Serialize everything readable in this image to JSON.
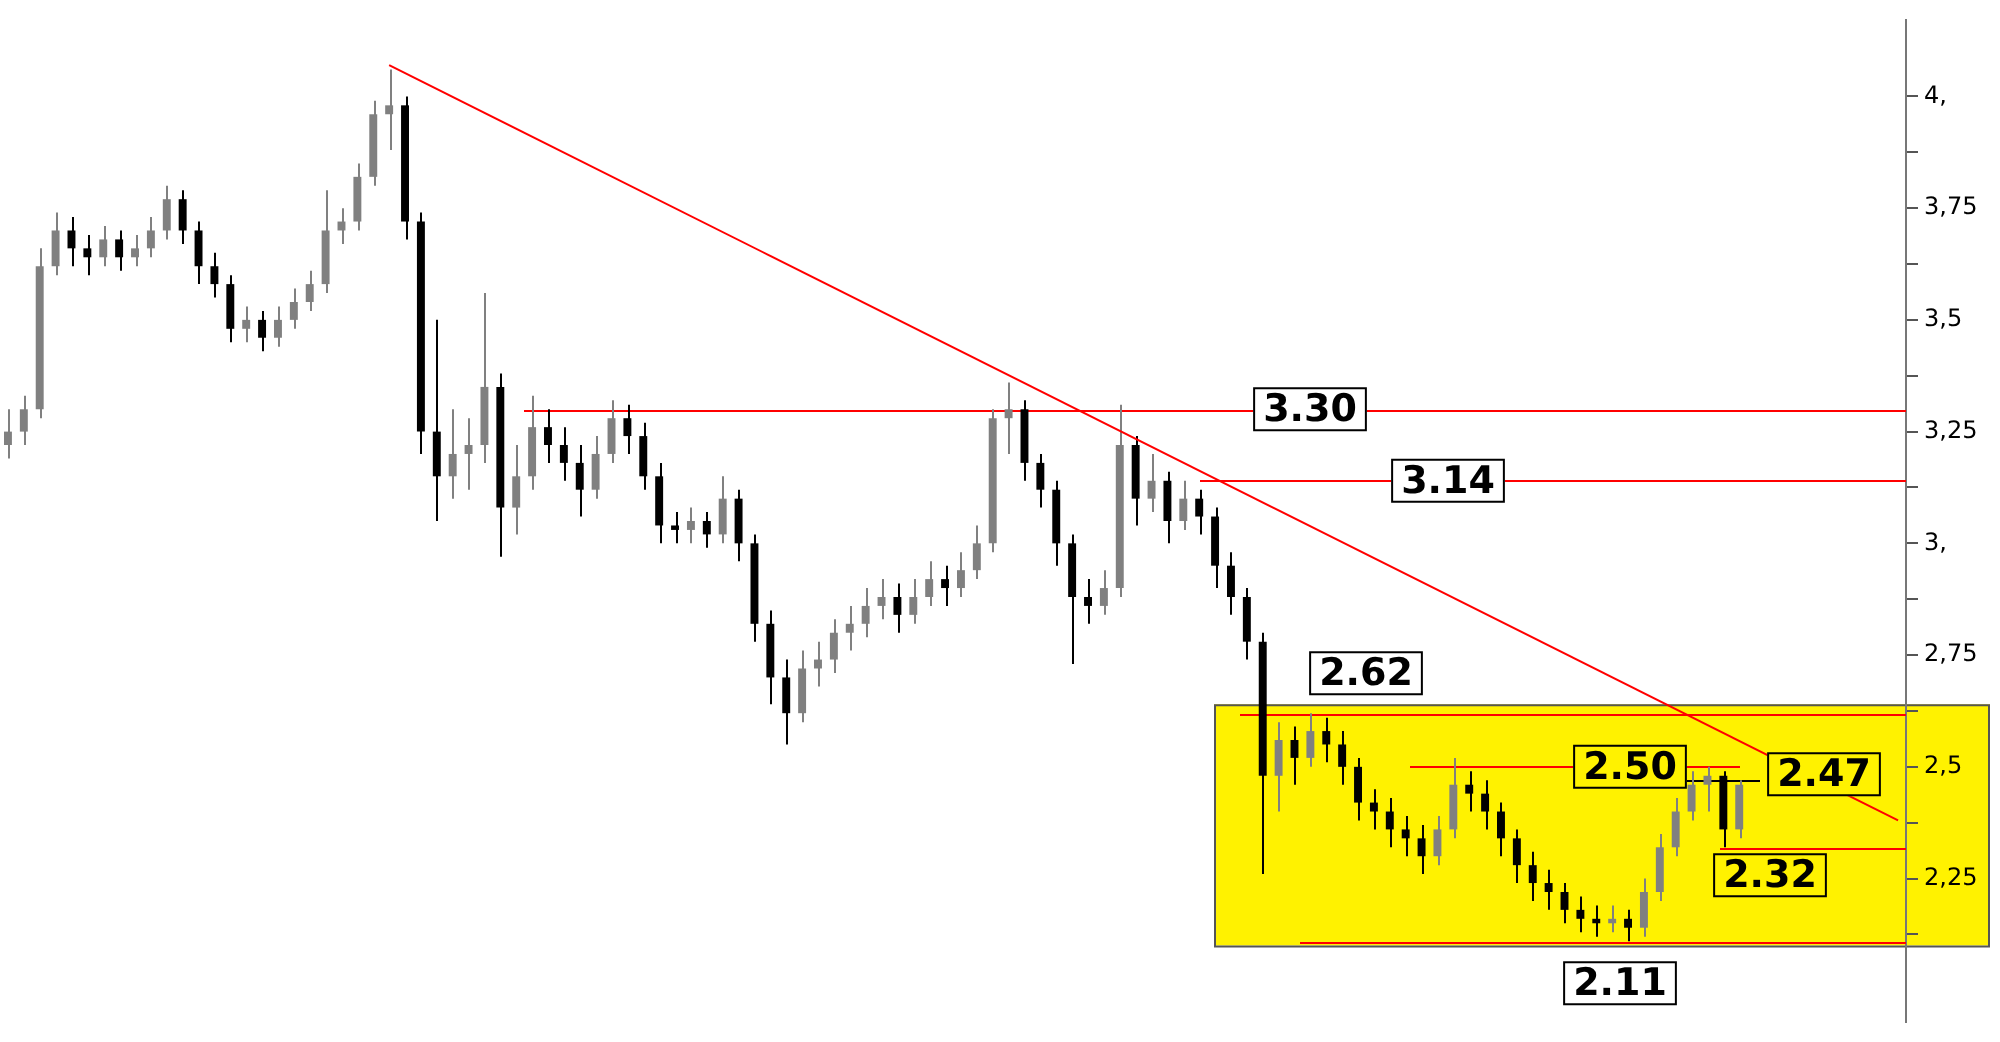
{
  "chart_data": {
    "type": "candlestick",
    "colors": [
      "#808080",
      "#808080",
      "#808080",
      "#808080",
      "#000000",
      "#000000",
      "#808080",
      "#000000",
      "#808080",
      "#808080",
      "#808080",
      "#000000",
      "#000000",
      "#000000",
      "#000000",
      "#808080",
      "#000000",
      "#808080",
      "#808080",
      "#808080",
      "#808080",
      "#808080",
      "#808080",
      "#808080",
      "#808080",
      "#000000",
      "#000000",
      "#000000",
      "#808080",
      "#808080",
      "#808080",
      "#000000",
      "#808080",
      "#808080",
      "#000000",
      "#000000",
      "#000000",
      "#808080",
      "#808080",
      "#000000",
      "#000000",
      "#000000",
      "#000000",
      "#808080",
      "#000000",
      "#808080",
      "#000000",
      "#000000",
      "#000000",
      "#000000",
      "#808080",
      "#808080",
      "#808080",
      "#808080",
      "#808080",
      "#808080",
      "#000000",
      "#808080",
      "#808080",
      "#000000",
      "#808080",
      "#808080",
      "#808080",
      "#808080",
      "#000000",
      "#000000",
      "#000000",
      "#000000",
      "#000000",
      "#808080",
      "#808080",
      "#000000",
      "#808080",
      "#000000",
      "#808080",
      "#000000",
      "#000000",
      "#000000",
      "#000000",
      "#000000",
      "#808080",
      "#000000",
      "#808080",
      "#000000",
      "#000000",
      "#000000",
      "#000000",
      "#000000",
      "#000000",
      "#000000",
      "#808080",
      "#808080",
      "#000000",
      "#000000",
      "#000000",
      "#000000",
      "#000000",
      "#000000",
      "#000000",
      "#000000",
      "#000000",
      "#808080",
      "#000000",
      "#808080",
      "#808080",
      "#808080",
      "#808080",
      "#808080",
      "#000000",
      "#808080",
      null,
      null,
      null,
      null,
      null,
      null,
      null,
      null,
      null,
      null
    ],
    "categories": [
      null,
      null,
      null,
      null,
      null,
      null,
      null,
      null,
      null,
      null,
      null,
      null,
      null,
      null,
      null,
      null,
      null,
      null,
      null,
      null,
      null,
      null,
      null,
      null,
      null,
      null,
      null,
      null,
      null,
      null,
      null,
      null,
      null,
      null,
      null,
      null,
      null,
      null,
      null,
      null,
      null,
      null,
      null,
      null,
      null,
      null,
      null,
      null,
      null,
      null,
      null,
      null,
      null,
      null,
      null,
      null,
      null,
      null,
      null,
      null,
      null,
      null,
      null,
      null,
      null,
      null,
      null,
      null,
      null,
      null,
      null,
      null,
      null,
      null,
      null,
      null,
      null,
      null,
      null,
      null,
      null,
      null,
      null,
      null,
      null,
      null,
      null,
      null,
      null,
      null,
      null,
      null,
      null,
      null,
      null,
      null,
      null,
      null,
      null,
      null,
      null,
      null,
      null,
      null,
      null,
      null,
      null,
      null,
      null,
      null,
      null,
      null,
      null,
      null,
      null,
      null,
      null,
      null,
      null,
      null
    ],
    "ohlc": [
      [
        3.22,
        3.3,
        3.19,
        3.25
      ],
      [
        3.25,
        3.33,
        3.22,
        3.3
      ],
      [
        3.3,
        3.66,
        3.28,
        3.62
      ],
      [
        3.62,
        3.74,
        3.6,
        3.7
      ],
      [
        3.7,
        3.73,
        3.62,
        3.66
      ],
      [
        3.66,
        3.69,
        3.6,
        3.64
      ],
      [
        3.64,
        3.71,
        3.62,
        3.68
      ],
      [
        3.68,
        3.7,
        3.61,
        3.64
      ],
      [
        3.64,
        3.69,
        3.62,
        3.66
      ],
      [
        3.66,
        3.73,
        3.64,
        3.7
      ],
      [
        3.7,
        3.8,
        3.68,
        3.77
      ],
      [
        3.77,
        3.79,
        3.67,
        3.7
      ],
      [
        3.7,
        3.72,
        3.58,
        3.62
      ],
      [
        3.62,
        3.65,
        3.55,
        3.58
      ],
      [
        3.58,
        3.6,
        3.45,
        3.48
      ],
      [
        3.48,
        3.53,
        3.45,
        3.5
      ],
      [
        3.5,
        3.52,
        3.43,
        3.46
      ],
      [
        3.46,
        3.53,
        3.44,
        3.5
      ],
      [
        3.5,
        3.57,
        3.48,
        3.54
      ],
      [
        3.54,
        3.61,
        3.52,
        3.58
      ],
      [
        3.58,
        3.79,
        3.56,
        3.7
      ],
      [
        3.7,
        3.75,
        3.67,
        3.72
      ],
      [
        3.72,
        3.85,
        3.7,
        3.82
      ],
      [
        3.82,
        3.99,
        3.8,
        3.96
      ],
      [
        3.96,
        4.06,
        3.88,
        3.98
      ],
      [
        3.98,
        4.0,
        3.68,
        3.72
      ],
      [
        3.72,
        3.74,
        3.2,
        3.25
      ],
      [
        3.25,
        3.5,
        3.05,
        3.15
      ],
      [
        3.15,
        3.3,
        3.1,
        3.2
      ],
      [
        3.2,
        3.28,
        3.12,
        3.22
      ],
      [
        3.22,
        3.56,
        3.18,
        3.35
      ],
      [
        3.35,
        3.38,
        2.97,
        3.08
      ],
      [
        3.08,
        3.22,
        3.02,
        3.15
      ],
      [
        3.15,
        3.33,
        3.12,
        3.26
      ],
      [
        3.26,
        3.3,
        3.18,
        3.22
      ],
      [
        3.22,
        3.26,
        3.14,
        3.18
      ],
      [
        3.18,
        3.22,
        3.06,
        3.12
      ],
      [
        3.12,
        3.24,
        3.1,
        3.2
      ],
      [
        3.2,
        3.32,
        3.18,
        3.28
      ],
      [
        3.28,
        3.31,
        3.2,
        3.24
      ],
      [
        3.24,
        3.27,
        3.12,
        3.15
      ],
      [
        3.15,
        3.18,
        3.0,
        3.04
      ],
      [
        3.04,
        3.07,
        3.0,
        3.03
      ],
      [
        3.03,
        3.08,
        3.0,
        3.05
      ],
      [
        3.05,
        3.07,
        2.99,
        3.02
      ],
      [
        3.02,
        3.15,
        3.0,
        3.1
      ],
      [
        3.1,
        3.12,
        2.96,
        3.0
      ],
      [
        3.0,
        3.02,
        2.78,
        2.82
      ],
      [
        2.82,
        2.85,
        2.64,
        2.7
      ],
      [
        2.7,
        2.74,
        2.55,
        2.62
      ],
      [
        2.62,
        2.76,
        2.6,
        2.72
      ],
      [
        2.72,
        2.78,
        2.68,
        2.74
      ],
      [
        2.74,
        2.83,
        2.71,
        2.8
      ],
      [
        2.8,
        2.86,
        2.76,
        2.82
      ],
      [
        2.82,
        2.9,
        2.79,
        2.86
      ],
      [
        2.86,
        2.92,
        2.83,
        2.88
      ],
      [
        2.88,
        2.91,
        2.8,
        2.84
      ],
      [
        2.84,
        2.92,
        2.82,
        2.88
      ],
      [
        2.88,
        2.96,
        2.86,
        2.92
      ],
      [
        2.92,
        2.95,
        2.86,
        2.9
      ],
      [
        2.9,
        2.98,
        2.88,
        2.94
      ],
      [
        2.94,
        3.04,
        2.92,
        3.0
      ],
      [
        3.0,
        3.3,
        2.98,
        3.28
      ],
      [
        3.28,
        3.36,
        3.2,
        3.3
      ],
      [
        3.3,
        3.32,
        3.14,
        3.18
      ],
      [
        3.18,
        3.2,
        3.08,
        3.12
      ],
      [
        3.12,
        3.14,
        2.95,
        3.0
      ],
      [
        3.0,
        3.02,
        2.73,
        2.88
      ],
      [
        2.88,
        2.92,
        2.82,
        2.86
      ],
      [
        2.86,
        2.94,
        2.84,
        2.9
      ],
      [
        2.9,
        3.31,
        2.88,
        3.22
      ],
      [
        3.22,
        3.24,
        3.04,
        3.1
      ],
      [
        3.1,
        3.2,
        3.07,
        3.14
      ],
      [
        3.14,
        3.16,
        3.0,
        3.05
      ],
      [
        3.05,
        3.14,
        3.03,
        3.1
      ],
      [
        3.1,
        3.12,
        3.02,
        3.06
      ],
      [
        3.06,
        3.08,
        2.9,
        2.95
      ],
      [
        2.95,
        2.98,
        2.84,
        2.88
      ],
      [
        2.88,
        2.9,
        2.74,
        2.78
      ],
      [
        2.78,
        2.8,
        2.26,
        2.48
      ],
      [
        2.48,
        2.6,
        2.4,
        2.56
      ],
      [
        2.56,
        2.59,
        2.46,
        2.52
      ],
      [
        2.52,
        2.62,
        2.5,
        2.58
      ],
      [
        2.58,
        2.61,
        2.51,
        2.55
      ],
      [
        2.55,
        2.58,
        2.46,
        2.5
      ],
      [
        2.5,
        2.52,
        2.38,
        2.42
      ],
      [
        2.42,
        2.45,
        2.36,
        2.4
      ],
      [
        2.4,
        2.43,
        2.32,
        2.36
      ],
      [
        2.36,
        2.39,
        2.3,
        2.34
      ],
      [
        2.34,
        2.37,
        2.26,
        2.3
      ],
      [
        2.3,
        2.39,
        2.28,
        2.36
      ],
      [
        2.36,
        2.52,
        2.34,
        2.46
      ],
      [
        2.46,
        2.49,
        2.4,
        2.44
      ],
      [
        2.44,
        2.47,
        2.36,
        2.4
      ],
      [
        2.4,
        2.42,
        2.3,
        2.34
      ],
      [
        2.34,
        2.36,
        2.24,
        2.28
      ],
      [
        2.28,
        2.31,
        2.2,
        2.24
      ],
      [
        2.24,
        2.27,
        2.18,
        2.22
      ],
      [
        2.22,
        2.24,
        2.15,
        2.18
      ],
      [
        2.18,
        2.21,
        2.13,
        2.16
      ],
      [
        2.16,
        2.19,
        2.12,
        2.15
      ],
      [
        2.15,
        2.19,
        2.13,
        2.16
      ],
      [
        2.16,
        2.18,
        2.11,
        2.14
      ],
      [
        2.14,
        2.25,
        2.12,
        2.22
      ],
      [
        2.22,
        2.35,
        2.2,
        2.32
      ],
      [
        2.32,
        2.43,
        2.3,
        2.4
      ],
      [
        2.4,
        2.49,
        2.38,
        2.46
      ],
      [
        2.46,
        2.5,
        2.4,
        2.48
      ],
      [
        2.48,
        2.49,
        2.32,
        2.36
      ],
      [
        2.36,
        2.47,
        2.34,
        2.46
      ],
      null,
      null,
      null,
      null,
      null,
      null,
      null,
      null,
      null,
      null
    ],
    "series": [
      {
        "type": "line",
        "color": "#ff0000",
        "values": [
          null,
          null,
          null,
          null,
          null,
          null,
          null,
          null,
          null,
          null,
          null,
          null,
          null,
          null,
          null,
          null,
          null,
          null,
          null,
          null,
          null,
          null,
          null,
          null,
          4.07,
          null,
          null,
          null,
          null,
          null,
          null,
          null,
          null,
          null,
          null,
          null,
          null,
          null,
          null,
          null,
          null,
          null,
          null,
          null,
          null,
          null,
          null,
          null,
          null,
          null,
          null,
          null,
          null,
          null,
          null,
          null,
          null,
          null,
          null,
          null,
          null,
          null,
          null,
          null,
          null,
          null,
          null,
          null,
          null,
          null,
          null,
          null,
          null,
          null,
          null,
          null,
          null,
          null,
          null,
          null,
          null,
          null,
          null,
          null,
          null,
          null,
          null,
          null,
          null,
          null,
          null,
          null,
          null,
          null,
          null,
          null,
          null,
          null,
          null,
          null,
          null,
          null,
          null,
          null,
          null,
          null,
          null,
          null,
          null,
          null,
          null,
          null,
          null,
          null,
          null,
          null,
          null,
          null,
          null,
          2.38
        ]
      }
    ],
    "ylim": [
      1.93,
      4.17
    ],
    "yticks": [
      {
        "value": 2.125,
        "label": null
      },
      {
        "value": 2.25,
        "label": "2,25"
      },
      {
        "value": 2.375,
        "label": null
      },
      {
        "value": 2.5,
        "label": "2,5"
      },
      {
        "value": 2.625,
        "label": null
      },
      {
        "value": 2.75,
        "label": "2,75"
      },
      {
        "value": 2.875,
        "label": null
      },
      {
        "value": 3,
        "label": "3,"
      },
      {
        "value": 3.125,
        "label": null
      },
      {
        "value": 3.25,
        "label": "3,25"
      },
      {
        "value": 3.375,
        "label": null
      },
      {
        "value": 3.5,
        "label": "3,5"
      },
      {
        "value": 3.625,
        "label": null
      },
      {
        "value": 3.75,
        "label": "3,75"
      },
      {
        "value": 3.875,
        "label": null
      },
      {
        "value": 4,
        "label": "4,"
      }
    ],
    "tick_labels": "y",
    "ref_lines": [
      {
        "axis": "y",
        "value": 3.3,
        "label": "3.30",
        "color": "#ff0000"
      },
      {
        "axis": "y",
        "value": 3.14,
        "label": "3.14",
        "color": "#ff0000"
      },
      {
        "axis": "y",
        "value": 2.62,
        "label": "2.62",
        "color": "#ff0000"
      },
      {
        "axis": "y",
        "value": 2.5,
        "label": "2.50",
        "color": "#ff0000"
      },
      {
        "axis": "y",
        "value": 2.47,
        "label": "2.47",
        "color": "#000000"
      },
      {
        "axis": "y",
        "value": 2.32,
        "label": "2.32",
        "color": "#ff0000"
      },
      {
        "axis": "y",
        "value": 2.11,
        "label": "2.11",
        "color": "#ff0000"
      }
    ],
    "bands": [
      {
        "axis": "y",
        "from": 2.1,
        "to": 2.64,
        "color": "#fff200"
      }
    ],
    "grid": false,
    "legend": false
  }
}
